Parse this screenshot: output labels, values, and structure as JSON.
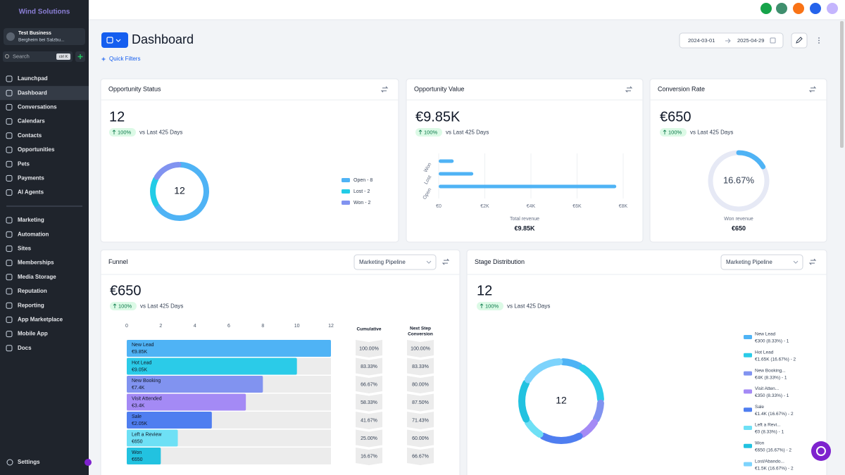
{
  "sidebar": {
    "brand": "Wind Solutions",
    "account": {
      "name": "Test Business",
      "location": "Bergheim bei Salzbu..."
    },
    "search": "Search",
    "shortcut": "ctrl K",
    "nav": [
      "Launchpad",
      "Dashboard",
      "Conversations",
      "Calendars",
      "Contacts",
      "Opportunities",
      "Pets",
      "Payments",
      "AI Agents"
    ],
    "nav2": [
      "Marketing",
      "Automation",
      "Sites",
      "Memberships",
      "Media Storage",
      "Reputation",
      "Reporting",
      "App Marketplace",
      "Mobile App",
      "Docs"
    ],
    "settings": "Settings"
  },
  "header": {
    "title": "Dashboard",
    "quick_filters": "Quick Filters",
    "date_from": "2024-03-01",
    "date_to": "2025-04-29"
  },
  "opportunity_status": {
    "title": "Opportunity Status",
    "value": 12,
    "change": "100%",
    "period": "vs Last 425 Days",
    "total": 12,
    "segments": [
      {
        "label": "Open - 8",
        "count": 8,
        "color": "#4fb3f5"
      },
      {
        "label": "Lost - 2",
        "count": 2,
        "color": "#22cce6"
      },
      {
        "label": "Won - 2",
        "count": 2,
        "color": "#8193f0"
      }
    ]
  },
  "opportunity_value": {
    "title": "Opportunity Value",
    "value": "€9.85K",
    "change": "100%",
    "period": "vs Last 425 Days",
    "categories": [
      "Won",
      "Lost",
      "Open"
    ],
    "values": [
      650,
      1500,
      7700
    ],
    "color": "#4fb3f5",
    "xlim": [
      0,
      8000
    ],
    "xticks": [
      {
        "value": 0,
        "label": "€0"
      },
      {
        "value": 2000,
        "label": "€2K"
      },
      {
        "value": 4000,
        "label": "€4K"
      },
      {
        "value": 6000,
        "label": "€6K"
      },
      {
        "value": 8000,
        "label": "€8K"
      }
    ],
    "footer_label": "Total revenue",
    "footer_value": "€9.85K"
  },
  "conversion_rate": {
    "title": "Conversion Rate",
    "value": "€650",
    "change": "100%",
    "period": "vs Last 425 Days",
    "rate": 16.67,
    "rate_label": "16.67%",
    "color": "#4fb3f5",
    "track_color": "#e6e9f5",
    "footer_label": "Won revenue",
    "footer_value": "€650"
  },
  "funnel": {
    "title": "Funnel",
    "pipeline": "Marketing Pipeline",
    "value": "€650",
    "change": "100%",
    "period": "vs Last 425 Days",
    "xlim": [
      0,
      12
    ],
    "xticks": [
      0,
      2,
      4,
      6,
      8,
      10,
      12
    ],
    "cumulative_header": "Cumulative",
    "next_step_header": [
      "Next Step",
      "Conversion"
    ],
    "stages": [
      {
        "name": "New Lead",
        "count": 12,
        "value_label": "€9.85K",
        "cumulative": "100.00%",
        "next_step": "100.00%",
        "color": "#4fb3f5"
      },
      {
        "name": "Hot Lead",
        "count": 10,
        "value_label": "€9.05K",
        "cumulative": "83.33%",
        "next_step": "83.33%",
        "color": "#2bcbe8"
      },
      {
        "name": "New Booking",
        "count": 8,
        "value_label": "€7.4K",
        "cumulative": "66.67%",
        "next_step": "80.00%",
        "color": "#8193f0"
      },
      {
        "name": "Visit Attended",
        "count": 7,
        "value_label": "€3.4K",
        "cumulative": "58.33%",
        "next_step": "87.50%",
        "color": "#a48af5"
      },
      {
        "name": "Sale",
        "count": 5,
        "value_label": "€2.05K",
        "cumulative": "41.67%",
        "next_step": "71.43%",
        "color": "#4f7ef0"
      },
      {
        "name": "Left a Review",
        "count": 3,
        "value_label": "€650",
        "cumulative": "25.00%",
        "next_step": "60.00%",
        "color": "#6ee0f5"
      },
      {
        "name": "Won",
        "count": 2,
        "value_label": "€650",
        "cumulative": "16.67%",
        "next_step": "66.67%",
        "color": "#22c2e0"
      }
    ]
  },
  "stage_distribution": {
    "title": "Stage Distribution",
    "pipeline": "Marketing Pipeline",
    "value": 12,
    "change": "100%",
    "period": "vs Last 425 Days",
    "total": 12,
    "segments": [
      {
        "name": "New Lead",
        "detail": "€300 (8.33%) - 1",
        "count": 1,
        "color": "#4fb3f5"
      },
      {
        "name": "Hot Lead",
        "detail": "€1.65K (16.67%) - 2",
        "count": 2,
        "color": "#2bcbe8"
      },
      {
        "name": "New Booking...",
        "detail": "€4K (8.33%) - 1",
        "count": 1,
        "color": "#8193f0"
      },
      {
        "name": "Visit Atten...",
        "detail": "€350 (8.33%) - 1",
        "count": 1,
        "color": "#a48af5"
      },
      {
        "name": "Sale",
        "detail": "€1.4K (16.67%) - 2",
        "count": 2,
        "color": "#4f7ef0"
      },
      {
        "name": "Left a Revi...",
        "detail": "€0 (8.33%) - 1",
        "count": 1,
        "color": "#6ee0f5"
      },
      {
        "name": "Won",
        "detail": "€650 (16.67%) - 2",
        "count": 2,
        "color": "#22c2e0"
      },
      {
        "name": "Lost/Abando...",
        "detail": "€1.5K (16.67%) - 2",
        "count": 2,
        "color": "#7dd3fc"
      }
    ]
  }
}
